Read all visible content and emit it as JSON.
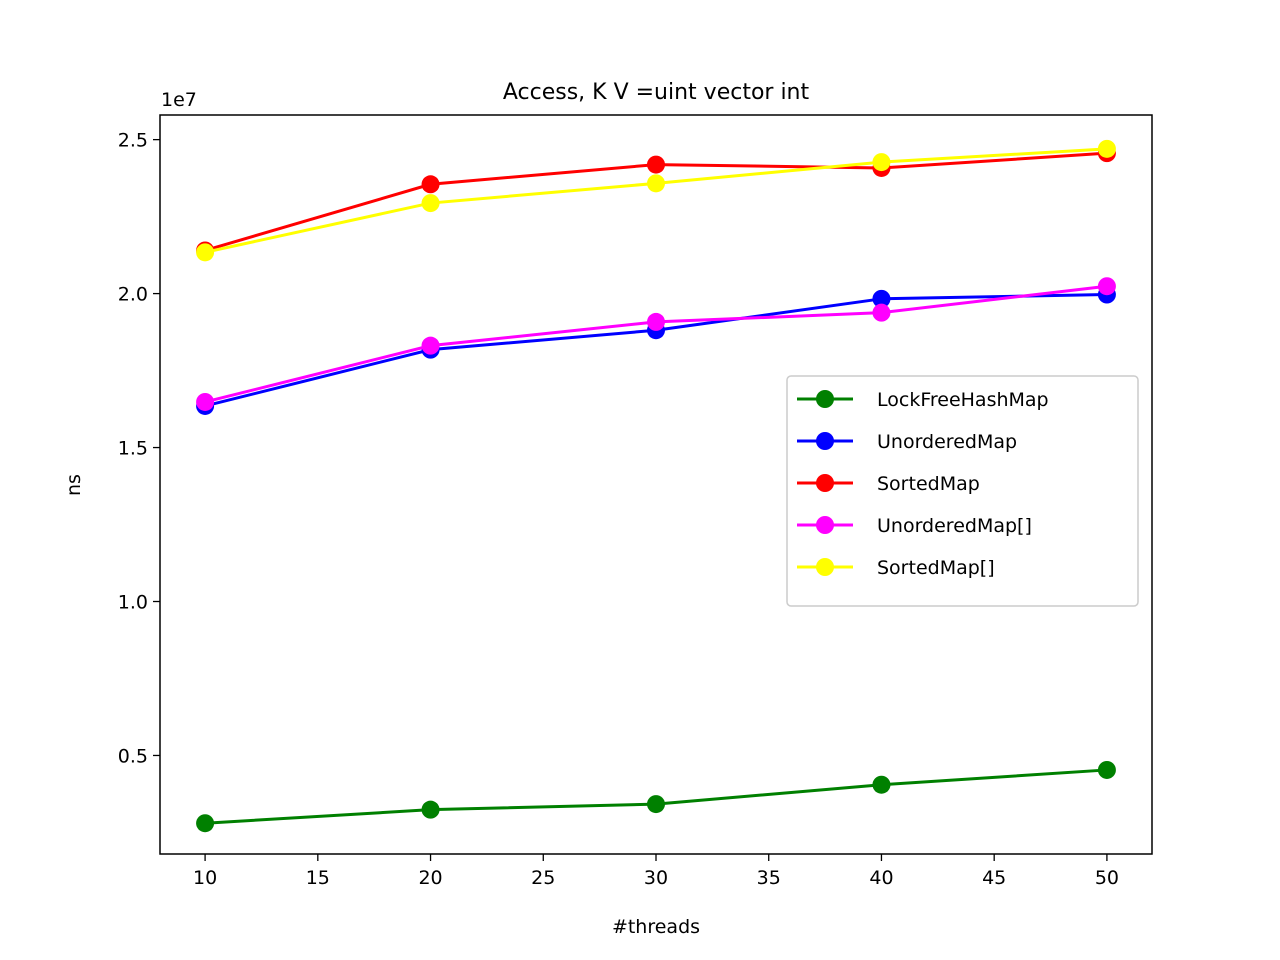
{
  "chart_data": {
    "type": "line",
    "title": "Access, K V =uint vector int",
    "xlabel": "#threads",
    "ylabel": "ns",
    "y_offset_label": "1e7",
    "x": [
      10,
      20,
      30,
      40,
      50
    ],
    "xlim": [
      8,
      52
    ],
    "ylim": [
      1800000,
      25800000
    ],
    "xticks": [
      10,
      15,
      20,
      25,
      30,
      35,
      40,
      45,
      50
    ],
    "yticks": [
      5000000,
      10000000,
      15000000,
      20000000,
      25000000
    ],
    "ytick_labels": [
      "0.5",
      "1.0",
      "1.5",
      "2.0",
      "2.5"
    ],
    "grid": false,
    "legend_position": "center-right",
    "series": [
      {
        "name": "LockFreeHashMap",
        "color": "#008000",
        "values": [
          2800000,
          3240000,
          3420000,
          4050000,
          4530000
        ]
      },
      {
        "name": "UnorderedMap",
        "color": "#0000ff",
        "values": [
          16350000,
          18180000,
          18810000,
          19830000,
          19970000
        ]
      },
      {
        "name": "SortedMap",
        "color": "#ff0000",
        "values": [
          21400000,
          23550000,
          24190000,
          24080000,
          24560000
        ]
      },
      {
        "name": "UnorderedMap[]",
        "color": "#ff00ff",
        "values": [
          16480000,
          18310000,
          19080000,
          19380000,
          20240000
        ]
      },
      {
        "name": "SortedMap[]",
        "color": "#ffff00",
        "values": [
          21340000,
          22940000,
          23580000,
          24270000,
          24700000
        ]
      }
    ]
  }
}
